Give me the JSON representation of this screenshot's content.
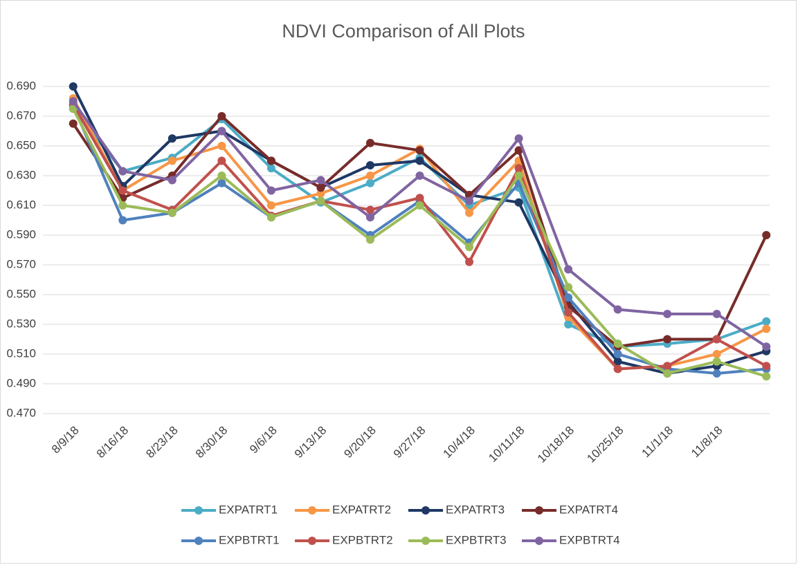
{
  "chart_data": {
    "type": "line",
    "title": "NDVI Comparison of All Plots",
    "categories": [
      "8/9/18",
      "8/16/18",
      "8/23/18",
      "8/30/18",
      "9/6/18",
      "9/13/18",
      "9/20/18",
      "9/27/18",
      "10/4/18",
      "10/11/18",
      "10/18/18",
      "10/25/18",
      "11/1/18",
      "11/8/18",
      null
    ],
    "series": [
      {
        "name": "EXPATRT1",
        "color": "#4bacc6",
        "values": [
          0.675,
          0.633,
          0.642,
          0.668,
          0.635,
          0.612,
          0.625,
          0.642,
          0.61,
          0.622,
          0.53,
          0.515,
          0.517,
          0.52,
          0.532
        ]
      },
      {
        "name": "EXPATRT2",
        "color": "#f79646",
        "values": [
          0.682,
          0.62,
          0.64,
          0.65,
          0.61,
          0.618,
          0.63,
          0.648,
          0.605,
          0.64,
          0.535,
          0.5,
          0.502,
          0.51,
          0.527
        ]
      },
      {
        "name": "EXPATRT3",
        "color": "#1f3864",
        "values": [
          0.69,
          0.623,
          0.655,
          0.66,
          0.64,
          0.622,
          0.637,
          0.64,
          0.617,
          0.612,
          0.545,
          0.505,
          0.497,
          0.502,
          0.512
        ]
      },
      {
        "name": "EXPATRT4",
        "color": "#772c2a",
        "values": [
          0.665,
          0.615,
          0.63,
          0.67,
          0.64,
          0.622,
          0.652,
          0.647,
          0.617,
          0.647,
          0.542,
          0.515,
          0.52,
          0.52,
          0.59
        ]
      },
      {
        "name": "EXPBTRT1",
        "color": "#4f81bd",
        "values": [
          0.677,
          0.6,
          0.605,
          0.625,
          0.602,
          0.613,
          0.59,
          0.613,
          0.585,
          0.625,
          0.548,
          0.51,
          0.5,
          0.497,
          0.5
        ]
      },
      {
        "name": "EXPBTRT2",
        "color": "#c0504d",
        "values": [
          0.678,
          0.62,
          0.607,
          0.64,
          0.603,
          0.613,
          0.607,
          0.615,
          0.572,
          0.635,
          0.538,
          0.5,
          0.502,
          0.52,
          0.502
        ]
      },
      {
        "name": "EXPBTRT3",
        "color": "#9bbb59",
        "values": [
          0.675,
          0.61,
          0.605,
          0.63,
          0.602,
          0.613,
          0.587,
          0.61,
          0.582,
          0.63,
          0.555,
          0.517,
          0.497,
          0.505,
          0.495
        ]
      },
      {
        "name": "EXPBTRT4",
        "color": "#8064a2",
        "values": [
          0.68,
          0.633,
          0.627,
          0.66,
          0.62,
          0.627,
          0.602,
          0.63,
          0.613,
          0.655,
          0.567,
          0.54,
          0.537,
          0.537,
          0.515
        ]
      }
    ],
    "ylim": [
      0.47,
      0.69
    ],
    "yticks": [
      {
        "value": 0.47,
        "label": "0.470"
      },
      {
        "value": 0.49,
        "label": "0.490"
      },
      {
        "value": 0.51,
        "label": "0.510"
      },
      {
        "value": 0.53,
        "label": "0.530"
      },
      {
        "value": 0.55,
        "label": "0.550"
      },
      {
        "value": 0.57,
        "label": "0.570"
      },
      {
        "value": 0.59,
        "label": "0.590"
      },
      {
        "value": 0.61,
        "label": "0.610"
      },
      {
        "value": 0.63,
        "label": "0.630"
      },
      {
        "value": 0.65,
        "label": "0.650"
      },
      {
        "value": 0.67,
        "label": "0.670"
      },
      {
        "value": 0.69,
        "label": "0.690"
      }
    ],
    "grid": true,
    "legend": "bottom"
  }
}
